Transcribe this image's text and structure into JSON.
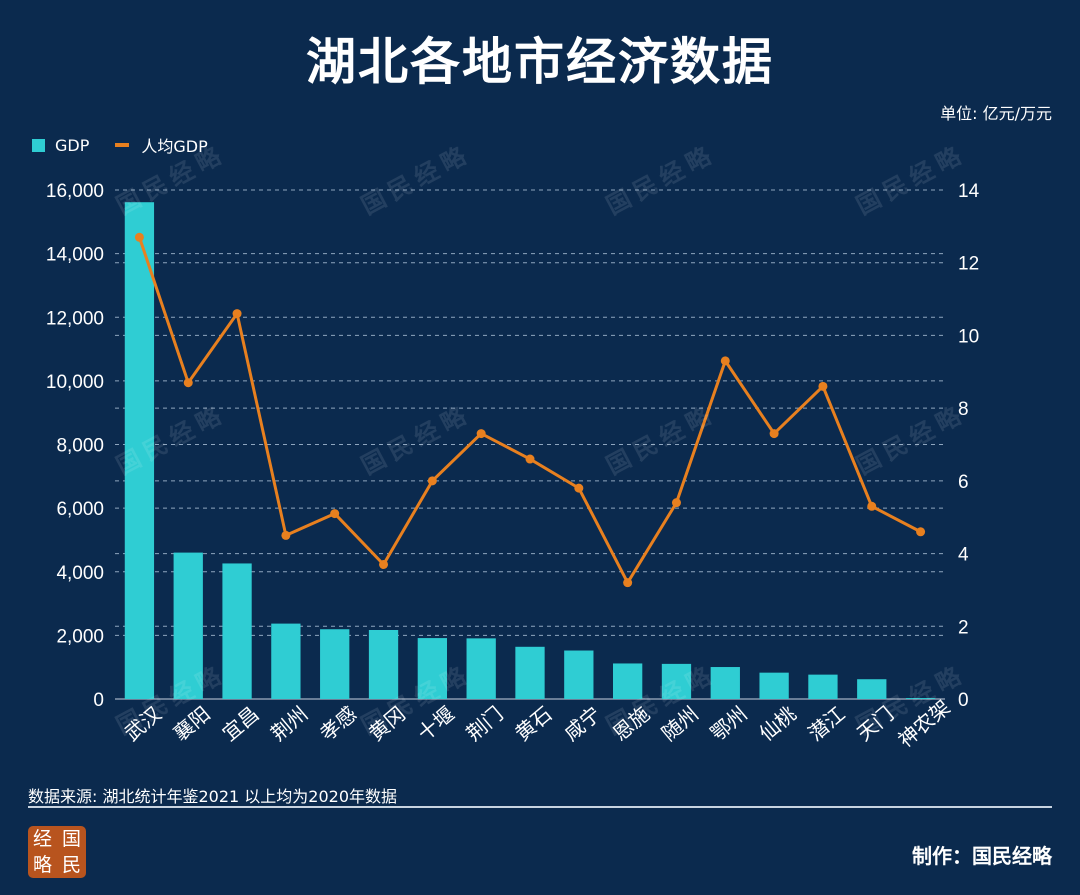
{
  "title": "湖北各地市经济数据",
  "unit_label": "单位: 亿元/万元",
  "legend": {
    "gdp_label": "GDP",
    "per_capita_label": "人均GDP"
  },
  "colors": {
    "background": "#0b2a4e",
    "bar": "#2fcdd3",
    "line": "#e8801f",
    "grid": "#8fa6bf"
  },
  "source": "数据来源: 湖北统计年鉴2021 以上均为2020年数据",
  "maker": "制作：国民经略",
  "logo_chars": [
    "经",
    "国",
    "略",
    "民"
  ],
  "watermark": "国民经略",
  "chart_data": {
    "type": "bar+line",
    "categories": [
      "武汉",
      "襄阳",
      "宜昌",
      "荆州",
      "孝感",
      "黄冈",
      "十堰",
      "荆门",
      "黄石",
      "咸宁",
      "恩施",
      "随州",
      "鄂州",
      "仙桃",
      "潜江",
      "天门",
      "神农架"
    ],
    "series": [
      {
        "name": "GDP",
        "type": "bar",
        "axis": "left",
        "values": [
          15616,
          4602,
          4261,
          2370,
          2193,
          2169,
          1915,
          1906,
          1641,
          1524,
          1117,
          1104,
          1005,
          828,
          766,
          622,
          30
        ]
      },
      {
        "name": "人均GDP",
        "type": "line",
        "axis": "right",
        "values": [
          12.7,
          8.7,
          10.6,
          4.5,
          5.1,
          3.7,
          6.0,
          7.3,
          6.6,
          5.8,
          3.2,
          5.4,
          9.3,
          7.3,
          8.6,
          5.3,
          4.6
        ]
      }
    ],
    "y_left": {
      "ylim": [
        0,
        16000
      ],
      "ticks": [
        "0",
        "2,000",
        "4,000",
        "6,000",
        "8,000",
        "10,000",
        "12,000",
        "14,000",
        "16,000"
      ]
    },
    "y_right": {
      "ylim": [
        0,
        14
      ],
      "ticks": [
        "0",
        "2",
        "4",
        "6",
        "8",
        "10",
        "12",
        "14"
      ]
    },
    "grid": true,
    "legend_position": "top-left"
  }
}
